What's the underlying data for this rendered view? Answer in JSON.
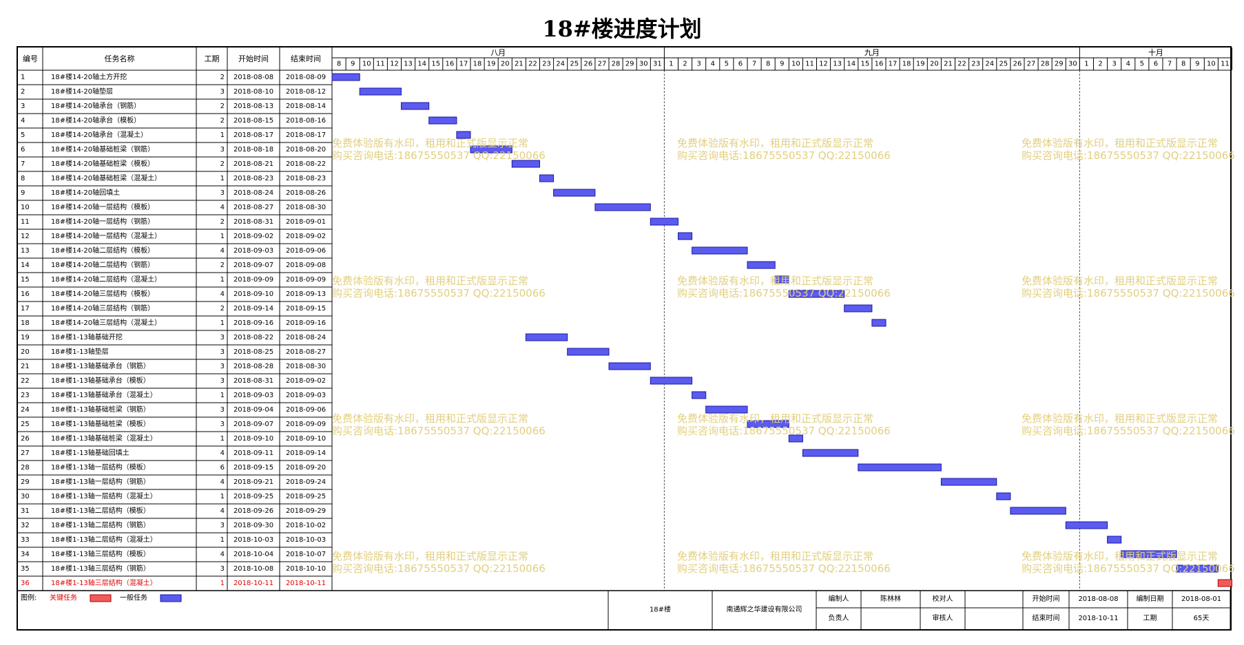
{
  "title": "18#楼进度计划",
  "columns": {
    "id": "编号",
    "name": "任务名称",
    "dur": "工期",
    "start": "开始时间",
    "end": "结束时间"
  },
  "chart_data": {
    "type": "gantt",
    "title": "18#楼进度计划",
    "months": [
      {
        "label": "八月",
        "days": [
          8,
          9,
          10,
          11,
          12,
          13,
          14,
          15,
          16,
          17,
          18,
          19,
          20,
          21,
          22,
          23,
          24,
          25,
          26,
          27,
          28,
          29,
          30,
          31
        ]
      },
      {
        "label": "九月",
        "days": [
          1,
          2,
          3,
          4,
          5,
          6,
          7,
          8,
          9,
          10,
          11,
          12,
          13,
          14,
          15,
          16,
          17,
          18,
          19,
          20,
          21,
          22,
          23,
          24,
          25,
          26,
          27,
          28,
          29,
          30
        ]
      },
      {
        "label": "十月",
        "days": [
          1,
          2,
          3,
          4,
          5,
          6,
          7,
          8,
          9,
          10,
          11
        ]
      }
    ],
    "tasks": [
      {
        "id": "1",
        "name": "18#楼14-20轴土方开挖",
        "dur": "2",
        "start": "2018-08-08",
        "end": "2018-08-09",
        "critical": false
      },
      {
        "id": "2",
        "name": "18#楼14-20轴垫层",
        "dur": "3",
        "start": "2018-08-10",
        "end": "2018-08-12",
        "critical": false
      },
      {
        "id": "3",
        "name": "18#楼14-20轴承台（钢筋）",
        "dur": "2",
        "start": "2018-08-13",
        "end": "2018-08-14",
        "critical": false
      },
      {
        "id": "4",
        "name": "18#楼14-20轴承台（模板）",
        "dur": "2",
        "start": "2018-08-15",
        "end": "2018-08-16",
        "critical": false
      },
      {
        "id": "5",
        "name": "18#楼14-20轴承台（混凝土）",
        "dur": "1",
        "start": "2018-08-17",
        "end": "2018-08-17",
        "critical": false
      },
      {
        "id": "6",
        "name": "18#楼14-20轴基础桩梁（钢筋）",
        "dur": "3",
        "start": "2018-08-18",
        "end": "2018-08-20",
        "critical": false
      },
      {
        "id": "7",
        "name": "18#楼14-20轴基础桩梁（模板）",
        "dur": "2",
        "start": "2018-08-21",
        "end": "2018-08-22",
        "critical": false
      },
      {
        "id": "8",
        "name": "18#楼14-20轴基础桩梁（混凝土）",
        "dur": "1",
        "start": "2018-08-23",
        "end": "2018-08-23",
        "critical": false
      },
      {
        "id": "9",
        "name": "18#楼14-20轴回填土",
        "dur": "3",
        "start": "2018-08-24",
        "end": "2018-08-26",
        "critical": false
      },
      {
        "id": "10",
        "name": "18#楼14-20轴一层结构（模板）",
        "dur": "4",
        "start": "2018-08-27",
        "end": "2018-08-30",
        "critical": false
      },
      {
        "id": "11",
        "name": "18#楼14-20轴一层结构（钢筋）",
        "dur": "2",
        "start": "2018-08-31",
        "end": "2018-09-01",
        "critical": false
      },
      {
        "id": "12",
        "name": "18#楼14-20轴一层结构（混凝土）",
        "dur": "1",
        "start": "2018-09-02",
        "end": "2018-09-02",
        "critical": false
      },
      {
        "id": "13",
        "name": "18#楼14-20轴二层结构（模板）",
        "dur": "4",
        "start": "2018-09-03",
        "end": "2018-09-06",
        "critical": false
      },
      {
        "id": "14",
        "name": "18#楼14-20轴二层结构（钢筋）",
        "dur": "2",
        "start": "2018-09-07",
        "end": "2018-09-08",
        "critical": false
      },
      {
        "id": "15",
        "name": "18#楼14-20轴二层结构（混凝土）",
        "dur": "1",
        "start": "2018-09-09",
        "end": "2018-09-09",
        "critical": false
      },
      {
        "id": "16",
        "name": "18#楼14-20轴三层结构（模板）",
        "dur": "4",
        "start": "2018-09-10",
        "end": "2018-09-13",
        "critical": false
      },
      {
        "id": "17",
        "name": "18#楼14-20轴三层结构（钢筋）",
        "dur": "2",
        "start": "2018-09-14",
        "end": "2018-09-15",
        "critical": false
      },
      {
        "id": "18",
        "name": "18#楼14-20轴三层结构（混凝土）",
        "dur": "1",
        "start": "2018-09-16",
        "end": "2018-09-16",
        "critical": false
      },
      {
        "id": "19",
        "name": "18#楼1-13轴基础开挖",
        "dur": "3",
        "start": "2018-08-22",
        "end": "2018-08-24",
        "critical": false
      },
      {
        "id": "20",
        "name": "18#楼1-13轴垫层",
        "dur": "3",
        "start": "2018-08-25",
        "end": "2018-08-27",
        "critical": false
      },
      {
        "id": "21",
        "name": "18#楼1-13轴基础承台（钢筋）",
        "dur": "3",
        "start": "2018-08-28",
        "end": "2018-08-30",
        "critical": false
      },
      {
        "id": "22",
        "name": "18#楼1-13轴基础承台（模板）",
        "dur": "3",
        "start": "2018-08-31",
        "end": "2018-09-02",
        "critical": false
      },
      {
        "id": "23",
        "name": "18#楼1-13轴基础承台（混凝土）",
        "dur": "1",
        "start": "2018-09-03",
        "end": "2018-09-03",
        "critical": false
      },
      {
        "id": "24",
        "name": "18#楼1-13轴基础桩梁（钢筋）",
        "dur": "3",
        "start": "2018-09-04",
        "end": "2018-09-06",
        "critical": false
      },
      {
        "id": "25",
        "name": "18#楼1-13轴基础桩梁（模板）",
        "dur": "3",
        "start": "2018-09-07",
        "end": "2018-09-09",
        "critical": false
      },
      {
        "id": "26",
        "name": "18#楼1-13轴基础桩梁（混凝土）",
        "dur": "1",
        "start": "2018-09-10",
        "end": "2018-09-10",
        "critical": false
      },
      {
        "id": "27",
        "name": "18#楼1-13轴基础回填土",
        "dur": "4",
        "start": "2018-09-11",
        "end": "2018-09-14",
        "critical": false
      },
      {
        "id": "28",
        "name": "18#楼1-13轴一层结构（模板）",
        "dur": "6",
        "start": "2018-09-15",
        "end": "2018-09-20",
        "critical": false
      },
      {
        "id": "29",
        "name": "18#楼1-13轴一层结构（钢筋）",
        "dur": "4",
        "start": "2018-09-21",
        "end": "2018-09-24",
        "critical": false
      },
      {
        "id": "30",
        "name": "18#楼1-13轴一层结构（混凝土）",
        "dur": "1",
        "start": "2018-09-25",
        "end": "2018-09-25",
        "critical": false
      },
      {
        "id": "31",
        "name": "18#楼1-13轴二层结构（模板）",
        "dur": "4",
        "start": "2018-09-26",
        "end": "2018-09-29",
        "critical": false
      },
      {
        "id": "32",
        "name": "18#楼1-13轴二层结构（钢筋）",
        "dur": "3",
        "start": "2018-09-30",
        "end": "2018-10-02",
        "critical": false
      },
      {
        "id": "33",
        "name": "18#楼1-13轴二层结构（混凝土）",
        "dur": "1",
        "start": "2018-10-03",
        "end": "2018-10-03",
        "critical": false
      },
      {
        "id": "34",
        "name": "18#楼1-13轴三层结构（模板）",
        "dur": "4",
        "start": "2018-10-04",
        "end": "2018-10-07",
        "critical": false
      },
      {
        "id": "35",
        "name": "18#楼1-13轴三层结构（钢筋）",
        "dur": "3",
        "start": "2018-10-08",
        "end": "2018-10-10",
        "critical": false
      },
      {
        "id": "36",
        "name": "18#楼1-13轴三层结构（混凝土）",
        "dur": "1",
        "start": "2018-10-11",
        "end": "2018-10-11",
        "critical": true
      }
    ]
  },
  "colors": {
    "normal": "#5b5bf0",
    "critical": "#f05c5c",
    "critical_text": "#e00000",
    "watermark": "#e2cf7e"
  },
  "legend": {
    "label": "图例:",
    "critical": "关键任务",
    "normal": "一般任务"
  },
  "watermark": {
    "line1": "免费体验版有水印，租用和正式版显示正常",
    "line2": "购买咨询电话:18675550537 QQ:22150066"
  },
  "footer": {
    "project": "18#楼",
    "company": "南通辉之华建设有限公司",
    "compiler_label": "编制人",
    "compiler": "陈林林",
    "checker_label": "校对人",
    "checker": "",
    "manager_label": "负责人",
    "manager": "",
    "reviewer_label": "审核人",
    "reviewer": "",
    "start_label": "开始时间",
    "start": "2018-08-08",
    "end_label": "结束时间",
    "end": "2018-10-11",
    "date_label": "编制日期",
    "date": "2018-08-01",
    "duration_label": "工期",
    "duration": "65天"
  }
}
